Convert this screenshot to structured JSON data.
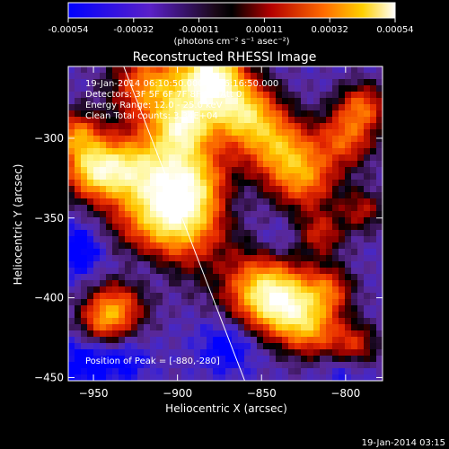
{
  "colorbar": {
    "ticks": [
      "-0.00054",
      "-0.00032",
      "-0.00011",
      "0.00011",
      "0.00032",
      "0.00054"
    ],
    "unit_label": "(photons cm⁻² s⁻¹ asec⁻²)",
    "range": [
      -0.00054,
      0.00054
    ]
  },
  "chart_data": {
    "type": "heatmap",
    "title": "Reconstructed RHESSI Image",
    "xlabel": "Heliocentric X (arcsec)",
    "ylabel": "Heliocentric Y (arcsec)",
    "xlim": [
      -965,
      -778
    ],
    "ylim": [
      -452,
      -255
    ],
    "xticks": [
      -950,
      -900,
      -850,
      -800
    ],
    "xtick_labels": [
      "−950",
      "−900",
      "−850",
      "−800"
    ],
    "yticks": [
      -450,
      -400,
      -350,
      -300
    ],
    "ytick_labels": [
      "−450",
      "−400",
      "−350",
      "−300"
    ],
    "annotations": [
      "19-Jan-2014 06:10:50.000 to 06:16:50.000",
      "Detectors: 3F 5F 6F 7F 8F 9F, Att 0",
      "Energy Range: 12.0 - 25.0 keV",
      "Clean     Total counts: 3.34E+04"
    ],
    "peak_label": "Position of Peak = [-880,-280]",
    "peak": [
      -880,
      -280
    ],
    "limb_line": [
      [
        -932,
        -255
      ],
      [
        -860,
        -452
      ]
    ],
    "colormap": "blue-purple-black-red-orange-yellow-white"
  },
  "footer": {
    "timestamp": "19-Jan-2014 03:15"
  },
  "colors": {
    "background": "#000000",
    "text": "#ffffff"
  }
}
